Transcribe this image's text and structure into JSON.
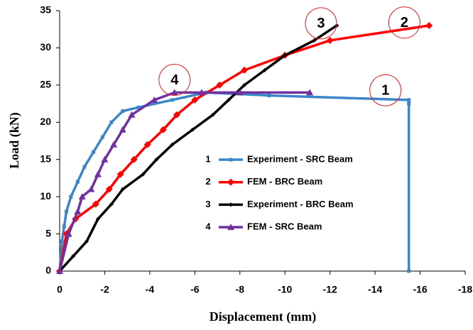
{
  "chart_data": {
    "type": "line",
    "xlabel": "Displacement (mm)",
    "ylabel": "Load (kN)",
    "xlim": [
      0,
      -18
    ],
    "ylim": [
      0,
      35
    ],
    "xticks": [
      0,
      -2,
      -4,
      -6,
      -8,
      -10,
      -12,
      -14,
      -16,
      -18
    ],
    "yticks": [
      0,
      5,
      10,
      15,
      20,
      25,
      30,
      35
    ],
    "series": [
      {
        "key": "1",
        "name": "Experiment - SRC Beam",
        "color": "#3a86c8",
        "marker": "square",
        "x": [
          0,
          -0.05,
          -0.1,
          -0.2,
          -0.3,
          -0.5,
          -0.8,
          -1.1,
          -1.5,
          -1.9,
          -2.3,
          -2.8,
          -3.5,
          -5,
          -6.5,
          -9.3,
          -15.5,
          -15.5,
          -15.5
        ],
        "values": [
          0,
          2,
          4,
          6,
          8,
          10,
          12,
          14,
          16,
          18,
          20,
          21.5,
          22,
          23,
          24,
          23.6,
          23,
          22.5,
          0
        ]
      },
      {
        "key": "2",
        "name": "FEM - BRC Beam",
        "color": "#ff0000",
        "marker": "diamond",
        "x": [
          0,
          -0.3,
          -0.7,
          -1.6,
          -2.2,
          -2.7,
          -3.3,
          -3.9,
          -4.6,
          -5.2,
          -6,
          -7.1,
          -8.2,
          -10,
          -12,
          -16.4
        ],
        "values": [
          0,
          5,
          7,
          9,
          11,
          13,
          15,
          17,
          19,
          21,
          23,
          25,
          27,
          29,
          31,
          33
        ]
      },
      {
        "key": "3",
        "name": "Experiment - BRC Beam",
        "color": "#000000",
        "marker": "small-diamond",
        "x": [
          0,
          -0.6,
          -1.2,
          -1.7,
          -2.3,
          -2.8,
          -3.7,
          -4.3,
          -5,
          -5.9,
          -6.8,
          -7.5,
          -8.2,
          -9.1,
          -10,
          -11.3,
          -12.3
        ],
        "values": [
          0,
          2,
          4,
          7,
          9,
          11,
          13,
          15,
          17,
          19,
          21,
          23,
          25,
          27,
          29,
          31,
          33
        ]
      },
      {
        "key": "4",
        "name": "FEM - SRC Beam",
        "color": "#7030a0",
        "marker": "triangle",
        "x": [
          0,
          -0.4,
          -0.8,
          -1,
          -1.4,
          -1.7,
          -2,
          -2.4,
          -2.8,
          -3.2,
          -4.2,
          -5.1,
          -6.3,
          -8,
          -11.1
        ],
        "values": [
          0,
          5,
          8,
          10,
          11,
          13,
          15,
          17,
          19,
          21,
          23,
          24,
          24,
          24,
          24
        ]
      }
    ],
    "annotations": [
      {
        "text": "1",
        "x": -14.46,
        "y": 24.3
      },
      {
        "text": "2",
        "x": -15.3,
        "y": 33.4
      },
      {
        "text": "3",
        "x": -11.6,
        "y": 33.3
      },
      {
        "text": "4",
        "x": -5.1,
        "y": 25.7
      }
    ]
  }
}
